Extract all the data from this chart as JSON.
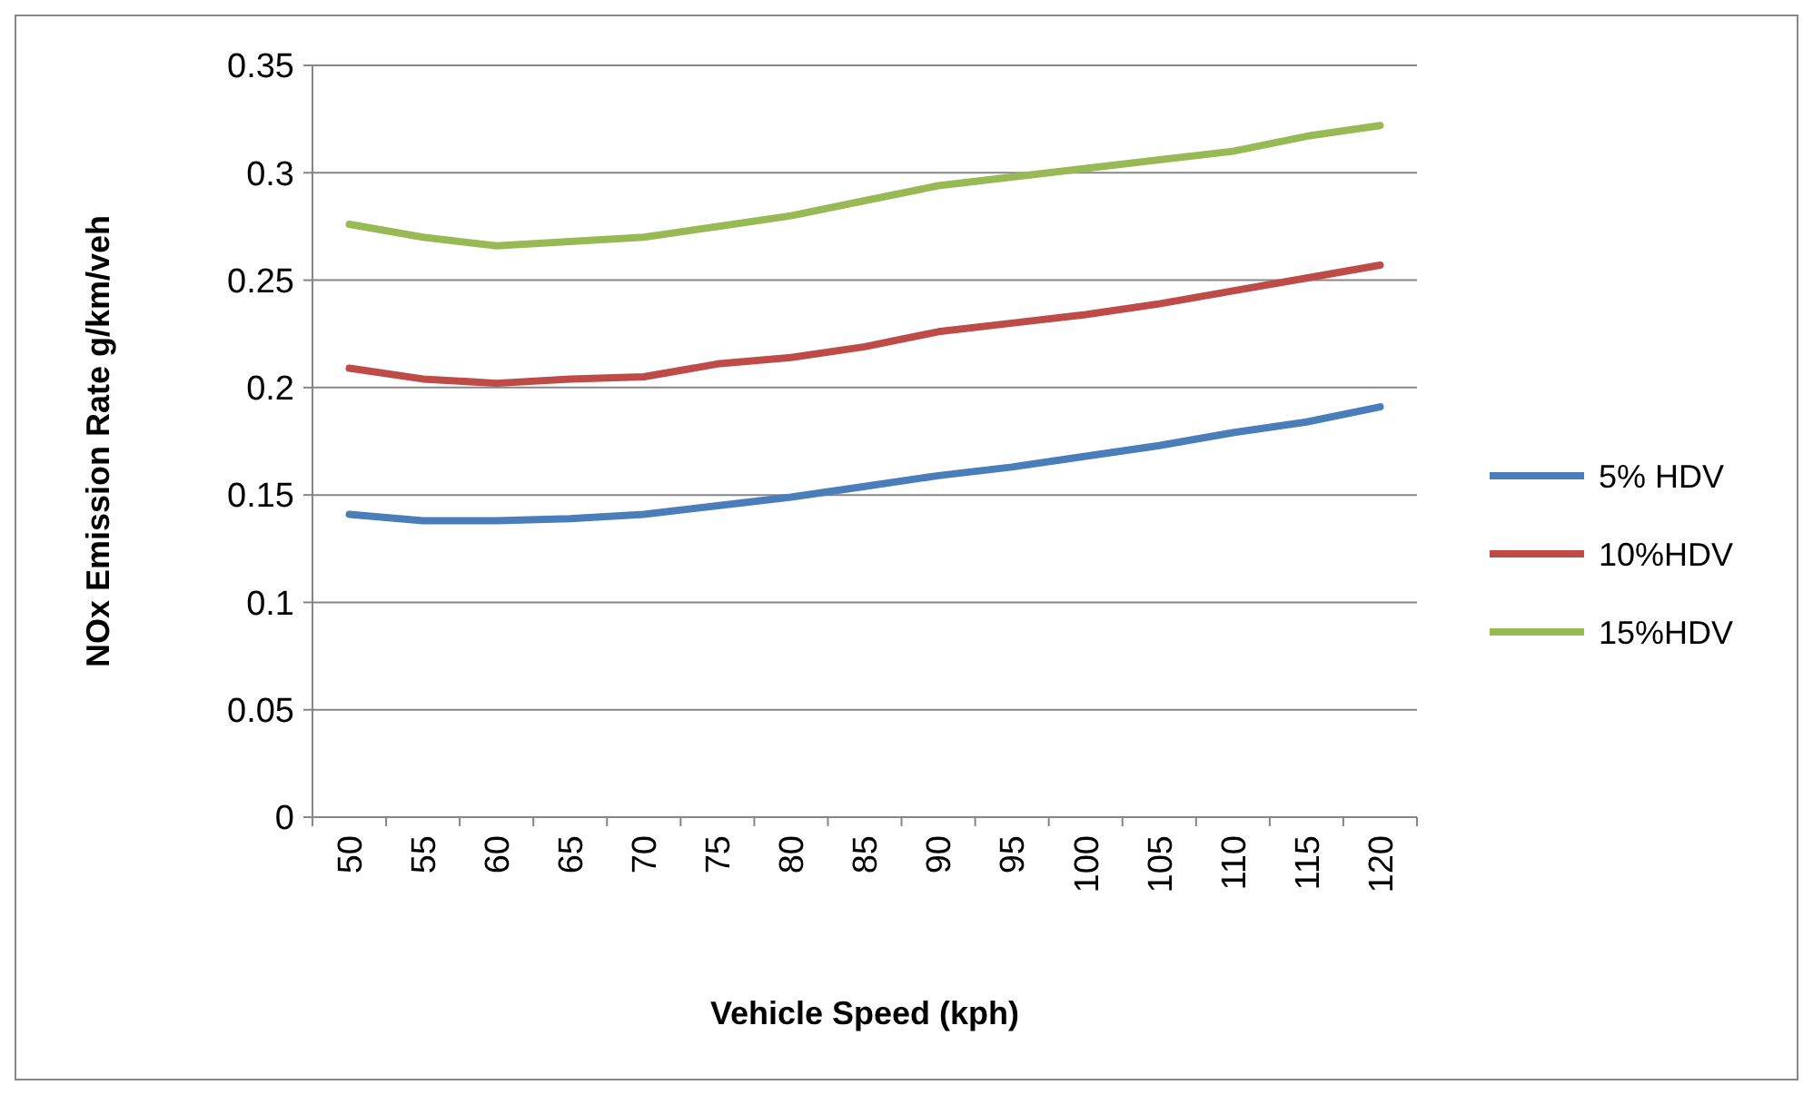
{
  "chart_data": {
    "type": "line",
    "xlabel": "Vehicle Speed (kph)",
    "ylabel": "NOx Emission  Rate g/km/veh",
    "categories": [
      "50",
      "55",
      "60",
      "65",
      "70",
      "75",
      "80",
      "85",
      "90",
      "95",
      "100",
      "105",
      "110",
      "115",
      "120"
    ],
    "series": [
      {
        "name": "5% HDV",
        "color": "#4a7ebb",
        "values": [
          0.141,
          0.138,
          0.138,
          0.139,
          0.141,
          0.145,
          0.149,
          0.154,
          0.159,
          0.163,
          0.168,
          0.173,
          0.179,
          0.184,
          0.191
        ]
      },
      {
        "name": "10%HDV",
        "color": "#be4b48",
        "values": [
          0.209,
          0.204,
          0.202,
          0.204,
          0.205,
          0.211,
          0.214,
          0.219,
          0.226,
          0.23,
          0.234,
          0.239,
          0.245,
          0.251,
          0.257
        ]
      },
      {
        "name": "15%HDV",
        "color": "#98b954",
        "values": [
          0.276,
          0.27,
          0.266,
          0.268,
          0.27,
          0.275,
          0.28,
          0.287,
          0.294,
          0.298,
          0.302,
          0.306,
          0.31,
          0.317,
          0.322
        ]
      }
    ],
    "ylim": [
      0,
      0.35
    ],
    "yticks": [
      0,
      0.05,
      0.1,
      0.15,
      0.2,
      0.25,
      0.3,
      0.35
    ],
    "grid": "y",
    "legend": "right",
    "marker": "none",
    "line_style": "solid"
  }
}
